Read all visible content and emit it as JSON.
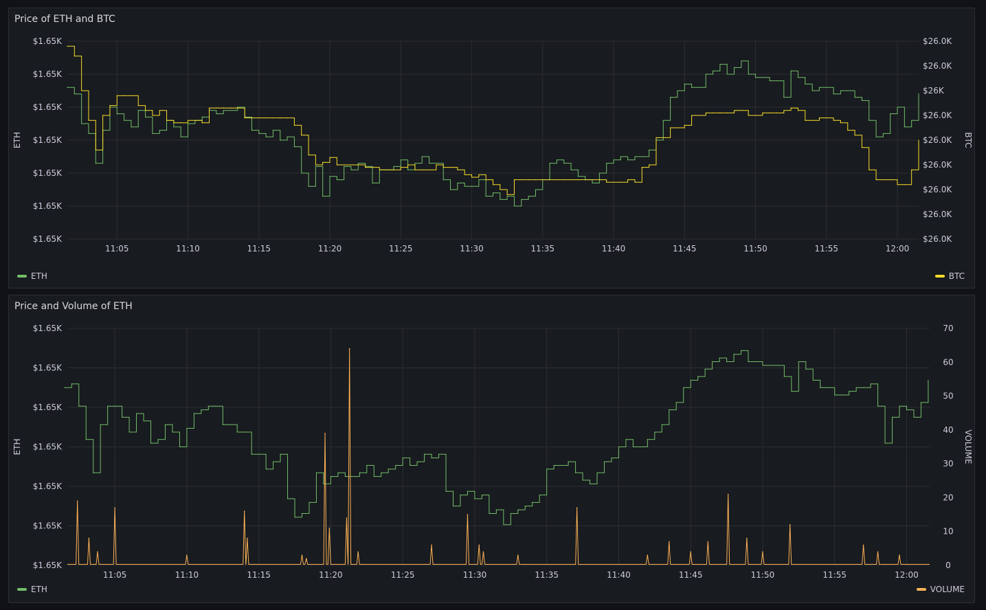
{
  "colors": {
    "eth": "#73bf69",
    "btc": "#fade2a",
    "volume": "#ffb357",
    "grid": "#2c2e33"
  },
  "panels": [
    {
      "title": "Price of ETH and BTC",
      "legend_left": "ETH",
      "legend_right": "BTC"
    },
    {
      "title": "Price and Volume of ETH",
      "legend_left": "ETH",
      "legend_right": "VOLUME"
    }
  ],
  "chart_data": [
    {
      "type": "line",
      "title": "Price of ETH and BTC",
      "x_ticks": [
        "11:05",
        "11:10",
        "11:15",
        "11:20",
        "11:25",
        "11:30",
        "11:35",
        "11:40",
        "11:45",
        "11:50",
        "11:55",
        "12:00"
      ],
      "x_range": [
        "11:01.5",
        "12:01.5"
      ],
      "y_left": {
        "label": "ETH",
        "ticks": [
          "$1.65K",
          "$1.65K",
          "$1.65K",
          "$1.65K",
          "$1.65K",
          "$1.65K",
          "$1.65K"
        ],
        "range": [
          0,
          6
        ]
      },
      "y_right": {
        "label": "BTC",
        "ticks": [
          "$26.0K",
          "$26.0K",
          "$26.0K",
          "$26.0K",
          "$26.0K",
          "$26.0K",
          "$26K",
          "$26.0K",
          "$26.0K"
        ],
        "range": [
          0,
          8
        ]
      },
      "legend": "bottom",
      "grid": true,
      "series": [
        {
          "name": "ETH",
          "axis": "left",
          "x": [
            1.5,
            2.0,
            2.5,
            3.0,
            3.5,
            4.0,
            4.5,
            5.0,
            5.5,
            6.0,
            6.5,
            7.0,
            7.5,
            8.0,
            8.5,
            9.0,
            9.5,
            10.0,
            10.5,
            11.0,
            11.5,
            12.0,
            12.5,
            13.0,
            13.5,
            14.0,
            14.5,
            15.0,
            15.5,
            16.0,
            16.5,
            17.0,
            17.5,
            18.0,
            18.5,
            19.0,
            19.5,
            20.0,
            20.5,
            21.0,
            21.5,
            22.0,
            22.5,
            23.0,
            23.5,
            24.0,
            24.5,
            25.0,
            25.5,
            26.0,
            26.5,
            27.0,
            27.5,
            28.0,
            28.5,
            29.0,
            29.5,
            30.0,
            30.5,
            31.0,
            31.5,
            32.0,
            32.5,
            33.0,
            33.5,
            34.0,
            34.5,
            35.0,
            35.5,
            36.0,
            36.5,
            37.0,
            37.5,
            38.0,
            38.5,
            39.0,
            39.5,
            40.0,
            40.5,
            41.0,
            41.5,
            42.0,
            42.5,
            43.0,
            43.5,
            44.0,
            44.5,
            45.0,
            45.5,
            46.0,
            46.5,
            47.0,
            47.5,
            48.0,
            48.5,
            49.0,
            49.5,
            50.0,
            50.5,
            51.0,
            51.5,
            52.0,
            52.5,
            53.0,
            53.5,
            54.0,
            54.5,
            55.0,
            55.5,
            56.0,
            56.5,
            57.0,
            57.5,
            58.0,
            58.5,
            59.0,
            59.5,
            60.0,
            60.5,
            61.0,
            61.5
          ],
          "values": [
            4.6,
            4.4,
            3.5,
            3.2,
            2.3,
            3.3,
            4.0,
            3.8,
            3.6,
            3.4,
            3.9,
            3.7,
            3.2,
            3.3,
            3.6,
            3.4,
            3.1,
            3.5,
            3.6,
            3.7,
            3.9,
            3.8,
            3.9,
            3.9,
            4.0,
            3.7,
            3.3,
            3.2,
            3.1,
            3.3,
            3.0,
            3.1,
            2.8,
            2.0,
            1.6,
            2.2,
            1.3,
            1.9,
            1.8,
            2.2,
            2.1,
            2.3,
            2.2,
            1.7,
            2.1,
            2.1,
            2.2,
            2.4,
            2.1,
            2.3,
            2.5,
            2.3,
            2.3,
            1.8,
            1.5,
            1.7,
            1.6,
            1.6,
            1.8,
            1.3,
            1.4,
            1.2,
            1.3,
            1.0,
            1.2,
            1.3,
            1.5,
            1.8,
            2.3,
            2.4,
            2.3,
            2.1,
            1.9,
            1.8,
            1.7,
            2.0,
            2.3,
            2.4,
            2.5,
            2.4,
            2.5,
            2.5,
            2.7,
            3.0,
            3.6,
            4.3,
            4.5,
            4.7,
            4.6,
            4.6,
            5.0,
            5.1,
            5.3,
            5.0,
            5.2,
            5.4,
            5.0,
            4.9,
            4.9,
            4.8,
            4.8,
            4.3,
            5.1,
            4.9,
            4.7,
            4.5,
            4.6,
            4.6,
            4.4,
            4.5,
            4.5,
            4.3,
            4.2,
            3.6,
            3.1,
            3.2,
            3.8,
            4.0,
            3.4,
            3.6,
            4.4
          ]
        },
        {
          "name": "BTC",
          "axis": "right",
          "x": [
            1.5,
            2.0,
            2.5,
            3.0,
            3.5,
            4.0,
            4.5,
            5.0,
            5.5,
            6.0,
            6.5,
            7.0,
            7.5,
            8.0,
            8.5,
            9.0,
            9.5,
            10.0,
            10.5,
            11.0,
            11.5,
            12.0,
            12.5,
            13.0,
            13.5,
            14.0,
            14.5,
            15.0,
            15.5,
            16.0,
            16.5,
            17.0,
            17.5,
            18.0,
            18.5,
            19.0,
            19.5,
            20.0,
            20.5,
            21.0,
            21.5,
            22.0,
            22.5,
            23.0,
            23.5,
            24.0,
            24.5,
            25.0,
            25.5,
            26.0,
            26.5,
            27.0,
            27.5,
            28.0,
            28.5,
            29.0,
            29.5,
            30.0,
            30.5,
            31.0,
            31.5,
            32.0,
            32.5,
            33.0,
            33.5,
            34.0,
            34.5,
            35.0,
            35.5,
            36.0,
            36.5,
            37.0,
            37.5,
            38.0,
            38.5,
            39.0,
            39.5,
            40.0,
            40.5,
            41.0,
            41.5,
            42.0,
            42.5,
            43.0,
            43.5,
            44.0,
            44.5,
            45.0,
            45.5,
            46.0,
            46.5,
            47.0,
            47.5,
            48.0,
            48.5,
            49.0,
            49.5,
            50.0,
            50.5,
            51.0,
            51.5,
            52.0,
            52.5,
            53.0,
            53.5,
            54.0,
            54.5,
            55.0,
            55.5,
            56.0,
            56.5,
            57.0,
            57.5,
            58.0,
            58.5,
            59.0,
            59.5,
            60.0,
            60.5,
            61.0,
            61.5
          ],
          "values": [
            7.8,
            7.4,
            6.0,
            4.8,
            3.6,
            5.0,
            5.4,
            5.8,
            5.8,
            5.8,
            5.4,
            5.2,
            5.0,
            5.2,
            4.8,
            4.7,
            4.7,
            4.8,
            4.8,
            4.7,
            5.3,
            5.3,
            5.3,
            5.3,
            5.3,
            4.9,
            4.9,
            4.9,
            4.9,
            4.9,
            4.9,
            4.9,
            4.6,
            4.2,
            3.4,
            3.0,
            3.1,
            3.3,
            3.0,
            3.0,
            3.0,
            3.0,
            2.9,
            2.9,
            2.8,
            2.8,
            2.8,
            2.9,
            3.0,
            2.8,
            2.8,
            2.8,
            3.0,
            2.9,
            2.9,
            2.8,
            2.6,
            2.5,
            2.6,
            2.4,
            2.2,
            2.0,
            1.8,
            2.4,
            2.4,
            2.4,
            2.4,
            2.4,
            2.4,
            2.4,
            2.4,
            2.4,
            2.4,
            2.4,
            2.4,
            2.4,
            2.3,
            2.3,
            2.3,
            2.4,
            2.3,
            2.9,
            3.0,
            4.1,
            4.1,
            4.5,
            4.5,
            4.6,
            5.0,
            5.0,
            5.1,
            5.1,
            5.1,
            5.1,
            5.2,
            5.2,
            5.0,
            5.0,
            5.1,
            5.1,
            5.1,
            5.2,
            5.3,
            5.2,
            4.8,
            4.8,
            4.9,
            4.9,
            4.8,
            4.7,
            4.4,
            4.2,
            3.7,
            2.8,
            2.4,
            2.4,
            2.4,
            2.2,
            2.2,
            2.8,
            4.0
          ]
        }
      ]
    },
    {
      "type": "line",
      "title": "Price and Volume of ETH",
      "x_ticks": [
        "11:05",
        "11:10",
        "11:15",
        "11:20",
        "11:25",
        "11:30",
        "11:35",
        "11:40",
        "11:45",
        "11:50",
        "11:55",
        "12:00"
      ],
      "x_range": [
        "11:01.7",
        "12:01.6"
      ],
      "y_left": {
        "label": "ETH",
        "ticks": [
          "$1.65K",
          "$1.65K",
          "$1.65K",
          "$1.65K",
          "$1.65K",
          "$1.65K",
          "$1.65K"
        ],
        "range": [
          0,
          6.4
        ]
      },
      "y_right": {
        "label": "VOLUME",
        "ticks": [
          "0",
          "10",
          "20",
          "30",
          "40",
          "50",
          "60",
          "70"
        ],
        "range": [
          0,
          70
        ]
      },
      "legend": "bottom",
      "grid": true,
      "series": [
        {
          "name": "ETH",
          "axis": "left",
          "x": [
            1.5,
            2.0,
            2.5,
            3.0,
            3.5,
            4.0,
            4.5,
            5.0,
            5.5,
            6.0,
            6.5,
            7.0,
            7.5,
            8.0,
            8.5,
            9.0,
            9.5,
            10.0,
            10.5,
            11.0,
            11.5,
            12.0,
            12.5,
            13.0,
            13.5,
            14.0,
            14.5,
            15.0,
            15.5,
            16.0,
            16.5,
            17.0,
            17.5,
            18.0,
            18.5,
            19.0,
            19.5,
            20.0,
            20.5,
            21.0,
            21.5,
            22.0,
            22.5,
            23.0,
            23.5,
            24.0,
            24.5,
            25.0,
            25.5,
            26.0,
            26.5,
            27.0,
            27.5,
            28.0,
            28.5,
            29.0,
            29.5,
            30.0,
            30.5,
            31.0,
            31.5,
            32.0,
            32.5,
            33.0,
            33.5,
            34.0,
            34.5,
            35.0,
            35.5,
            36.0,
            36.5,
            37.0,
            37.5,
            38.0,
            38.5,
            39.0,
            39.5,
            40.0,
            40.5,
            41.0,
            41.5,
            42.0,
            42.5,
            43.0,
            43.5,
            44.0,
            44.5,
            45.0,
            45.5,
            46.0,
            46.5,
            47.0,
            47.5,
            48.0,
            48.5,
            49.0,
            49.5,
            50.0,
            50.5,
            51.0,
            51.5,
            52.0,
            52.5,
            53.0,
            53.5,
            54.0,
            54.5,
            55.0,
            55.5,
            56.0,
            56.5,
            57.0,
            57.5,
            58.0,
            58.5,
            59.0,
            59.5,
            60.0,
            60.5,
            61.0,
            61.5
          ],
          "values": [
            4.8,
            4.9,
            4.3,
            3.4,
            2.5,
            3.8,
            4.3,
            4.3,
            4.0,
            3.6,
            4.1,
            3.9,
            3.3,
            3.4,
            3.8,
            3.6,
            3.2,
            3.7,
            4.1,
            4.2,
            4.3,
            4.3,
            3.8,
            3.8,
            3.6,
            3.6,
            3.0,
            3.0,
            2.6,
            2.8,
            3.0,
            1.8,
            1.3,
            1.4,
            1.7,
            2.5,
            2.2,
            2.4,
            2.5,
            2.4,
            2.4,
            2.5,
            2.7,
            2.4,
            2.5,
            2.6,
            2.7,
            2.9,
            2.7,
            2.8,
            3.0,
            2.9,
            3.0,
            2.0,
            1.6,
            1.9,
            2.0,
            1.8,
            1.9,
            1.4,
            1.5,
            1.1,
            1.4,
            1.5,
            1.6,
            1.7,
            1.9,
            2.6,
            2.7,
            2.7,
            2.8,
            2.5,
            2.3,
            2.2,
            2.5,
            2.8,
            2.9,
            3.2,
            3.4,
            3.2,
            3.2,
            3.4,
            3.6,
            3.8,
            4.2,
            4.4,
            4.8,
            5.0,
            5.1,
            5.3,
            5.5,
            5.6,
            5.5,
            5.7,
            5.8,
            5.5,
            5.5,
            5.4,
            5.4,
            5.4,
            5.1,
            4.7,
            5.5,
            5.3,
            5.0,
            4.8,
            4.8,
            4.6,
            4.6,
            4.7,
            4.8,
            4.8,
            4.9,
            4.3,
            3.3,
            4.0,
            4.3,
            4.2,
            4.0,
            4.4,
            5.0
          ]
        },
        {
          "name": "VOLUME",
          "axis": "right",
          "x": [
            2.4,
            3.2,
            3.8,
            5.0,
            10.0,
            14.0,
            14.2,
            18.0,
            18.3,
            19.6,
            19.9,
            21.1,
            21.3,
            21.9,
            27.0,
            29.5,
            30.3,
            30.6,
            33.0,
            37.1,
            42.0,
            43.5,
            45.0,
            46.2,
            47.6,
            48.9,
            50.0,
            51.9,
            57.0,
            58.0,
            59.5
          ],
          "values": [
            19,
            8,
            4,
            17,
            3,
            16,
            8,
            3,
            2,
            39,
            11,
            14,
            64,
            4,
            6,
            15,
            6,
            4,
            3,
            17,
            3,
            7,
            4,
            7,
            21,
            8,
            4,
            12,
            6,
            4,
            3
          ]
        }
      ]
    }
  ]
}
